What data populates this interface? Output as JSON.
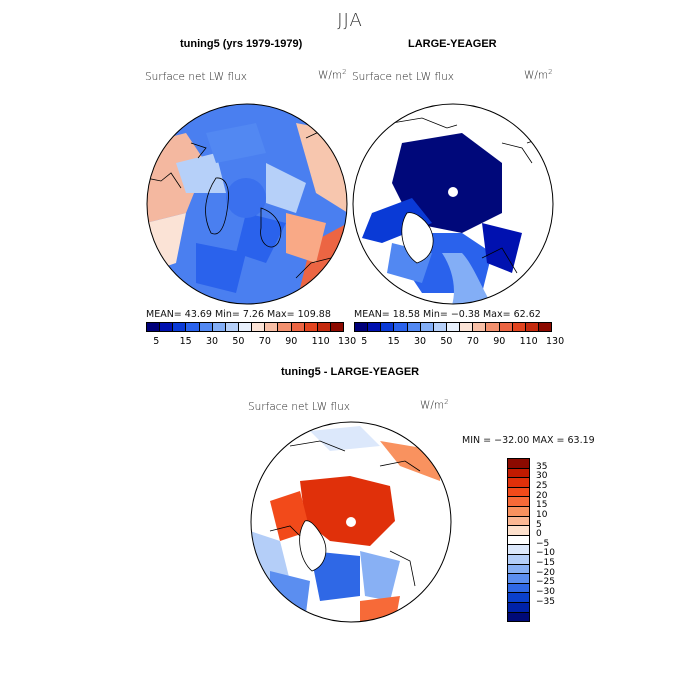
{
  "season": "JJA",
  "panels": {
    "model": {
      "title": "tuning5 (yrs 1979-1979)",
      "variable": "Surface net LW flux",
      "units_base": "W/m",
      "units_exp": "2",
      "stats": "MEAN=   43.69   Min=     7.26   Max=  109.88"
    },
    "obs": {
      "title": "LARGE-YEAGER",
      "variable": "Surface net LW flux",
      "units_base": "W/m",
      "units_exp": "2",
      "stats": "MEAN=   18.58   Min=   −0.38   Max=   62.62"
    },
    "diff": {
      "title": "tuning5 - LARGE-YEAGER",
      "variable": "Surface net LW flux",
      "units_base": "W/m",
      "units_exp": "2",
      "stats": "MIN = −32.00  MAX =   63.19"
    }
  },
  "colorbar_abs": {
    "tick_labels": [
      "5",
      "15",
      "30",
      "50",
      "70",
      "90",
      "110",
      "130"
    ],
    "colors": [
      "#00007a",
      "#0011b0",
      "#0a3ad6",
      "#2a62ec",
      "#5288f2",
      "#83aef6",
      "#b6d0f9",
      "#e8f0fc",
      "#fbe3d6",
      "#f8bfa6",
      "#f2906e",
      "#ec6543",
      "#e2441f",
      "#c42a0e",
      "#8c0a00"
    ]
  },
  "colorbar_diff": {
    "tick_labels": [
      "35",
      "30",
      "25",
      "20",
      "15",
      "10",
      "5",
      "0",
      "−5",
      "−10",
      "−15",
      "−20",
      "−25",
      "−30",
      "−35"
    ],
    "colors": [
      "#8c0a00",
      "#c21a00",
      "#e0300a",
      "#f24a1a",
      "#f76a38",
      "#f9925f",
      "#fbb793",
      "#fde0cc",
      "#ffffff",
      "#dce8fb",
      "#b4cef8",
      "#88b0f4",
      "#5b8ef0",
      "#2f68e6",
      "#0b40cc",
      "#0022a8",
      "#000a78"
    ]
  },
  "colors": {
    "land": "#ffffff",
    "coast": "#000000"
  }
}
